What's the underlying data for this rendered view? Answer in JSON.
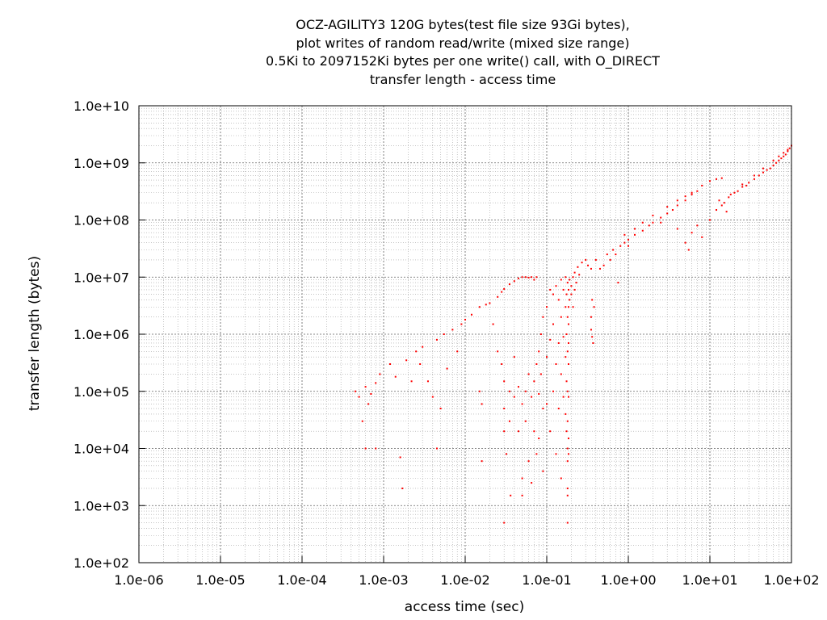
{
  "chart_data": {
    "type": "scatter",
    "title": [
      "OCZ-AGILITY3 120G bytes(test file size 93Gi bytes),",
      "plot writes of random read/write (mixed size range)",
      "0.5Ki to 2097152Ki bytes per one write() call, with O_DIRECT",
      "transfer length - access time"
    ],
    "xlabel": "access time (sec)",
    "ylabel": "transfer length (bytes)",
    "xscale": "log",
    "yscale": "log",
    "xlim": [
      1e-06,
      100
    ],
    "ylim": [
      100,
      10000000000.0
    ],
    "xticks": [
      {
        "value": 1e-06,
        "label": "1.0e-06"
      },
      {
        "value": 1e-05,
        "label": "1.0e-05"
      },
      {
        "value": 0.0001,
        "label": "1.0e-04"
      },
      {
        "value": 0.001,
        "label": "1.0e-03"
      },
      {
        "value": 0.01,
        "label": "1.0e-02"
      },
      {
        "value": 0.1,
        "label": "1.0e-01"
      },
      {
        "value": 1,
        "label": "1.0e+00"
      },
      {
        "value": 10,
        "label": "1.0e+01"
      },
      {
        "value": 100,
        "label": "1.0e+02"
      }
    ],
    "yticks": [
      {
        "value": 100.0,
        "label": "1.0e+02"
      },
      {
        "value": 1000.0,
        "label": "1.0e+03"
      },
      {
        "value": 10000.0,
        "label": "1.0e+04"
      },
      {
        "value": 100000.0,
        "label": "1.0e+05"
      },
      {
        "value": 1000000.0,
        "label": "1.0e+06"
      },
      {
        "value": 10000000.0,
        "label": "1.0e+07"
      },
      {
        "value": 100000000.0,
        "label": "1.0e+08"
      },
      {
        "value": 1000000000.0,
        "label": "1.0e+09"
      },
      {
        "value": 10000000000.0,
        "label": "1.0e+10"
      }
    ],
    "grid": true,
    "point_color": "#ff0000",
    "grid_color": "#a0a0a0",
    "series": [
      {
        "points": [
          [
            0.00045,
            100000
          ],
          [
            0.0005,
            80000
          ],
          [
            0.0006,
            120000
          ],
          [
            0.0007,
            90000
          ],
          [
            0.00065,
            60000
          ],
          [
            0.0008,
            140000
          ],
          [
            0.00055,
            30000
          ],
          [
            0.0006,
            10000
          ],
          [
            0.0008,
            10000
          ],
          [
            0.0009,
            200000
          ],
          [
            0.0012,
            300000
          ],
          [
            0.0014,
            180000
          ],
          [
            0.0016,
            7000
          ],
          [
            0.0017,
            2000
          ],
          [
            0.0019,
            350000
          ],
          [
            0.0022,
            150000
          ],
          [
            0.0025,
            500000
          ],
          [
            0.003,
            600000
          ],
          [
            0.0028,
            300000
          ],
          [
            0.0035,
            150000
          ],
          [
            0.004,
            80000
          ],
          [
            0.0045,
            800000
          ],
          [
            0.0045,
            10000
          ],
          [
            0.005,
            50000
          ],
          [
            0.0055,
            1000000
          ],
          [
            0.006,
            250000
          ],
          [
            0.007,
            1200000
          ],
          [
            0.008,
            500000
          ],
          [
            0.009,
            1500000
          ],
          [
            0.01,
            1800000
          ],
          [
            0.012,
            2200000
          ],
          [
            0.015,
            3000000
          ],
          [
            0.015,
            100000
          ],
          [
            0.016,
            60000
          ],
          [
            0.016,
            6000
          ],
          [
            0.018,
            3300000
          ],
          [
            0.02,
            3500000
          ],
          [
            0.022,
            1500000
          ],
          [
            0.025,
            4500000
          ],
          [
            0.028,
            5500000
          ],
          [
            0.03,
            6200000
          ],
          [
            0.035,
            7500000
          ],
          [
            0.04,
            8500000
          ],
          [
            0.045,
            9500000
          ],
          [
            0.05,
            10000000
          ],
          [
            0.055,
            10000000
          ],
          [
            0.06,
            9800000
          ],
          [
            0.065,
            10000000
          ],
          [
            0.07,
            9000000
          ],
          [
            0.075,
            10000000
          ],
          [
            0.025,
            500000
          ],
          [
            0.028,
            300000
          ],
          [
            0.03,
            150000
          ],
          [
            0.03,
            50000
          ],
          [
            0.03,
            20000
          ],
          [
            0.032,
            8000
          ],
          [
            0.03,
            500
          ],
          [
            0.035,
            100000
          ],
          [
            0.035,
            30000
          ],
          [
            0.036,
            1500
          ],
          [
            0.04,
            400000
          ],
          [
            0.04,
            80000
          ],
          [
            0.045,
            120000
          ],
          [
            0.045,
            20000
          ],
          [
            0.05,
            3000
          ],
          [
            0.05,
            60000
          ],
          [
            0.05,
            1500
          ],
          [
            0.055,
            100000
          ],
          [
            0.055,
            30000
          ],
          [
            0.06,
            200000
          ],
          [
            0.06,
            6000
          ],
          [
            0.065,
            80000
          ],
          [
            0.065,
            2500
          ],
          [
            0.07,
            150000
          ],
          [
            0.07,
            20000
          ],
          [
            0.075,
            300000
          ],
          [
            0.075,
            8000
          ],
          [
            0.08,
            500000
          ],
          [
            0.08,
            90000
          ],
          [
            0.08,
            15000
          ],
          [
            0.085,
            1000000
          ],
          [
            0.085,
            200000
          ],
          [
            0.09,
            2000000
          ],
          [
            0.09,
            50000
          ],
          [
            0.09,
            4000
          ],
          [
            0.1,
            3000000
          ],
          [
            0.1,
            400000
          ],
          [
            0.1,
            60000
          ],
          [
            0.11,
            6000000
          ],
          [
            0.11,
            800000
          ],
          [
            0.11,
            20000
          ],
          [
            0.12,
            5000000
          ],
          [
            0.12,
            1500000
          ],
          [
            0.12,
            100000
          ],
          [
            0.13,
            7000000
          ],
          [
            0.13,
            300000
          ],
          [
            0.13,
            8000
          ],
          [
            0.14,
            4000000
          ],
          [
            0.14,
            700000
          ],
          [
            0.14,
            50000
          ],
          [
            0.15,
            9000000
          ],
          [
            0.15,
            2000000
          ],
          [
            0.15,
            200000
          ],
          [
            0.15,
            3000
          ],
          [
            0.16,
            6000000
          ],
          [
            0.16,
            900000
          ],
          [
            0.16,
            80000
          ],
          [
            0.17,
            10000000
          ],
          [
            0.17,
            3000000
          ],
          [
            0.17,
            400000
          ],
          [
            0.17,
            40000
          ],
          [
            0.175,
            5000000
          ],
          [
            0.175,
            1000000
          ],
          [
            0.175,
            150000
          ],
          [
            0.175,
            20000
          ],
          [
            0.18,
            8000000
          ],
          [
            0.18,
            2000000
          ],
          [
            0.18,
            500000
          ],
          [
            0.18,
            100000
          ],
          [
            0.18,
            30000
          ],
          [
            0.18,
            10000
          ],
          [
            0.18,
            6000
          ],
          [
            0.18,
            2000
          ],
          [
            0.18,
            1500
          ],
          [
            0.18,
            500
          ],
          [
            0.185,
            6000000
          ],
          [
            0.185,
            3000000
          ],
          [
            0.185,
            1500000
          ],
          [
            0.185,
            700000
          ],
          [
            0.185,
            300000
          ],
          [
            0.185,
            80000
          ],
          [
            0.185,
            15000
          ],
          [
            0.185,
            8000
          ],
          [
            0.19,
            4000000
          ],
          [
            0.19,
            9000000
          ],
          [
            0.2,
            7000000
          ],
          [
            0.2,
            5000000
          ],
          [
            0.21,
            10000000
          ],
          [
            0.21,
            3000000
          ],
          [
            0.22,
            6000000
          ],
          [
            0.22,
            12000000
          ],
          [
            0.23,
            8000000
          ],
          [
            0.24,
            15000000
          ],
          [
            0.25,
            11000000
          ],
          [
            0.27,
            18000000
          ],
          [
            0.3,
            20000000
          ],
          [
            0.32,
            16000000
          ],
          [
            0.35,
            14000000
          ],
          [
            0.35,
            2000000
          ],
          [
            0.35,
            1200000
          ],
          [
            0.36,
            900000
          ],
          [
            0.37,
            700000
          ],
          [
            0.36,
            4000000
          ],
          [
            0.38,
            3000000
          ],
          [
            0.4,
            20000000
          ],
          [
            0.45,
            14000000
          ],
          [
            0.5,
            16000000
          ],
          [
            0.55,
            25000000
          ],
          [
            0.6,
            20000000
          ],
          [
            0.65,
            30000000
          ],
          [
            0.7,
            25000000
          ],
          [
            0.75,
            8000000
          ],
          [
            0.8,
            35000000
          ],
          [
            0.9,
            40000000
          ],
          [
            1.0,
            45000000
          ],
          [
            1.2,
            55000000
          ],
          [
            1.5,
            65000000
          ],
          [
            1.8,
            80000000
          ],
          [
            2.0,
            90000000
          ],
          [
            2.5,
            110000000
          ],
          [
            3.0,
            130000000
          ],
          [
            3.5,
            150000000
          ],
          [
            4.0,
            180000000
          ],
          [
            5.0,
            220000000
          ],
          [
            6.0,
            280000000
          ],
          [
            7.0,
            320000000
          ],
          [
            8.0,
            400000000
          ],
          [
            10.0,
            480000000
          ],
          [
            12.0,
            520000000
          ],
          [
            14.0,
            540000000
          ],
          [
            0.9,
            55000000
          ],
          [
            1.2,
            70000000
          ],
          [
            1.5,
            90000000
          ],
          [
            2.0,
            120000000
          ],
          [
            3.0,
            170000000
          ],
          [
            4.0,
            220000000
          ],
          [
            5.0,
            260000000
          ],
          [
            6.0,
            300000000
          ],
          [
            1.0,
            35000000
          ],
          [
            2.5,
            90000000
          ],
          [
            4.0,
            70000000
          ],
          [
            5.0,
            40000000
          ],
          [
            5.5,
            30000000
          ],
          [
            6.0,
            60000000
          ],
          [
            7.0,
            80000000
          ],
          [
            8.0,
            50000000
          ],
          [
            10.0,
            100000000
          ],
          [
            12.0,
            150000000
          ],
          [
            14.0,
            180000000
          ],
          [
            15.0,
            200000000
          ],
          [
            17.0,
            250000000
          ],
          [
            20.0,
            300000000
          ],
          [
            22.0,
            320000000
          ],
          [
            25.0,
            380000000
          ],
          [
            28.0,
            400000000
          ],
          [
            30.0,
            450000000
          ],
          [
            35.0,
            520000000
          ],
          [
            40.0,
            600000000
          ],
          [
            45.0,
            680000000
          ],
          [
            50.0,
            750000000
          ],
          [
            55.0,
            800000000
          ],
          [
            60.0,
            900000000
          ],
          [
            65.0,
            1000000000
          ],
          [
            70.0,
            1100000000
          ],
          [
            75.0,
            1200000000
          ],
          [
            80.0,
            1300000000
          ],
          [
            85.0,
            1400000000
          ],
          [
            90.0,
            1600000000
          ],
          [
            95.0,
            1800000000
          ],
          [
            100.0,
            2000000000
          ],
          [
            60.0,
            1100000000
          ],
          [
            70.0,
            1300000000
          ],
          [
            80.0,
            1500000000
          ],
          [
            90.0,
            1700000000
          ],
          [
            45.0,
            800000000
          ],
          [
            35.0,
            600000000
          ],
          [
            25.0,
            420000000
          ],
          [
            18.0,
            280000000
          ],
          [
            16.0,
            140000000
          ],
          [
            13.0,
            220000000
          ]
        ]
      }
    ]
  }
}
